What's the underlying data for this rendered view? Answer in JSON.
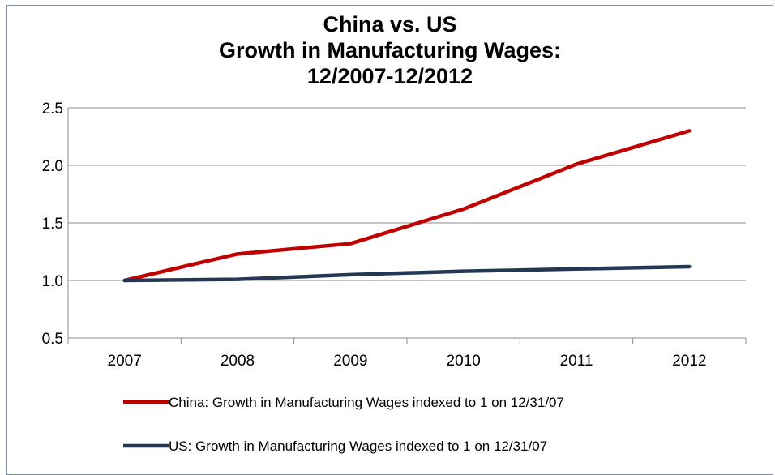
{
  "chart_data": {
    "type": "line",
    "title": [
      "China vs. US",
      "Growth in Manufacturing Wages:",
      "12/2007-12/2012"
    ],
    "xlabel": "",
    "ylabel": "",
    "categories": [
      "2007",
      "2008",
      "2009",
      "2010",
      "2011",
      "2012"
    ],
    "ylim": [
      0.5,
      2.5
    ],
    "yticks": [
      "0.5",
      "1.0",
      "1.5",
      "2.0",
      "2.5"
    ],
    "grid": true,
    "legend_position": "bottom",
    "series": [
      {
        "name": "China: Growth in Manufacturing Wages indexed to 1 on 12/31/07",
        "values": [
          1.0,
          1.23,
          1.32,
          1.62,
          2.01,
          2.3
        ],
        "color": "#c00000"
      },
      {
        "name": "US: Growth in Manufacturing Wages indexed to 1 on 12/31/07",
        "values": [
          1.0,
          1.01,
          1.05,
          1.08,
          1.1,
          1.12
        ],
        "color": "#243853"
      }
    ]
  }
}
